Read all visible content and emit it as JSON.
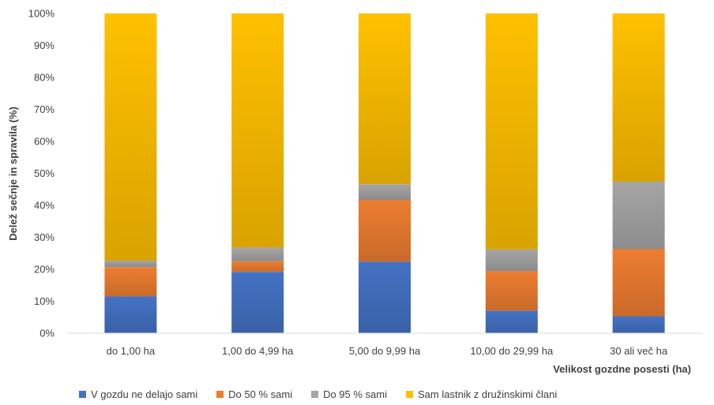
{
  "chart_data": {
    "type": "bar",
    "stacked": true,
    "categories": [
      "do 1,00 ha",
      "1,00 do 4,99 ha",
      "5,00 do 9,99 ha",
      "10,00 do 29,99 ha",
      "30 ali več ha"
    ],
    "series": [
      {
        "name": "V gozdu ne delajo sami",
        "color": "#4472C4",
        "values": [
          11.5,
          19.2,
          22.4,
          7.0,
          5.3
        ]
      },
      {
        "name": "Do 50 % sami",
        "color": "#ED7D31",
        "values": [
          9.2,
          3.3,
          19.2,
          12.4,
          21.0
        ]
      },
      {
        "name": "Do 95 % sami",
        "color": "#A5A5A5",
        "values": [
          2.0,
          4.3,
          5.0,
          6.8,
          21.1
        ]
      },
      {
        "name": "Sam lastnik z družinskimi člani",
        "color": "#FFC000",
        "values": [
          77.3,
          73.2,
          53.4,
          73.8,
          52.6
        ]
      }
    ],
    "ylabel": "Delež  sečnje in spravila (%)",
    "xlabel": "Velikost gozdne posesti (ha)",
    "ylim": [
      0,
      100
    ],
    "yticks": [
      "0%",
      "10%",
      "20%",
      "30%",
      "40%",
      "50%",
      "60%",
      "70%",
      "80%",
      "90%",
      "100%"
    ],
    "grid": false,
    "legend_position": "bottom"
  }
}
